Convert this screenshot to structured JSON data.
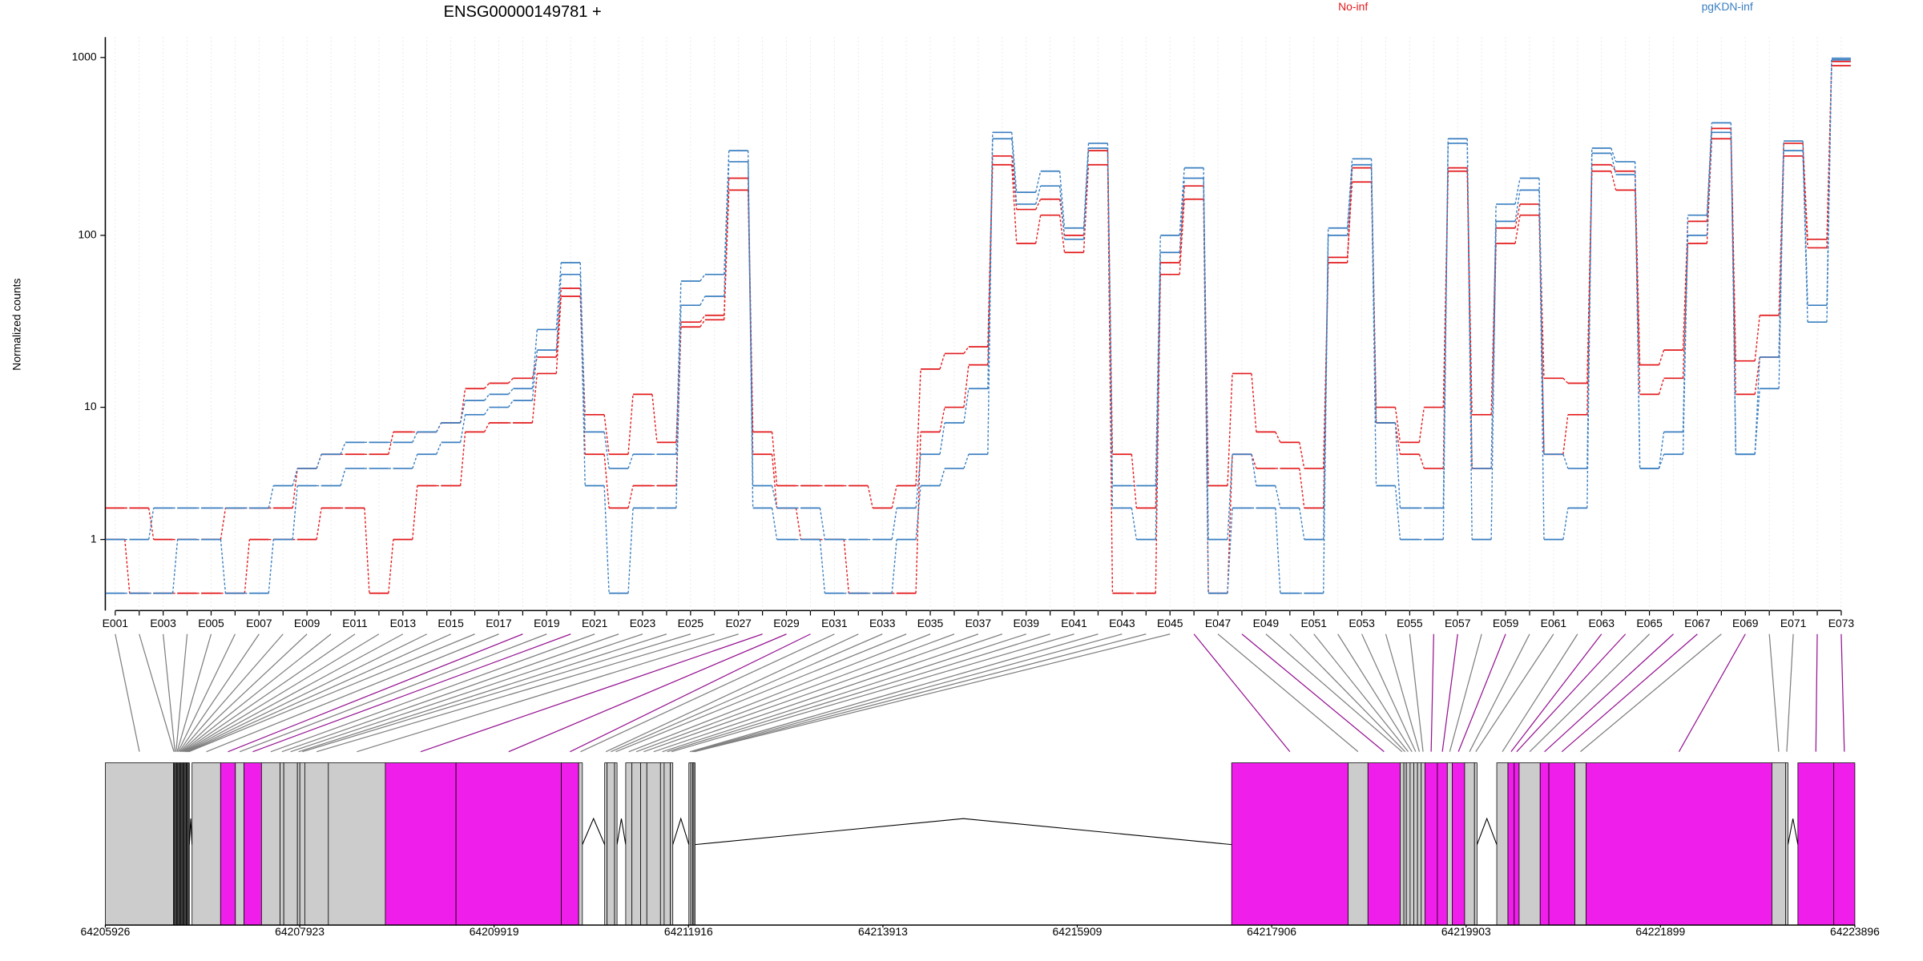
{
  "chart_data": [
    {
      "type": "step",
      "title": "ENSG00000149781 +",
      "ylabel": "Normalized counts",
      "yscale": "log1p",
      "ylim": [
        -0.2,
        1300
      ],
      "yticks": [
        1,
        10,
        100,
        1000
      ],
      "grid": true,
      "legend": "top",
      "categories": [
        "E001",
        null,
        "E003",
        null,
        "E005",
        null,
        "E007",
        null,
        "E009",
        null,
        "E011",
        null,
        "E013",
        null,
        "E015",
        null,
        "E017",
        null,
        "E019",
        null,
        "E021",
        null,
        "E023",
        null,
        "E025",
        null,
        "E027",
        null,
        "E029",
        null,
        "E031",
        null,
        "E033",
        null,
        "E035",
        null,
        "E037",
        null,
        "E039",
        null,
        "E041",
        null,
        "E043",
        null,
        "E045",
        null,
        "E047",
        null,
        "E049",
        null,
        "E051",
        null,
        "E053",
        null,
        "E055",
        null,
        "E057",
        null,
        "E059",
        null,
        "E061",
        null,
        "E063",
        null,
        "E065",
        null,
        "E067",
        null,
        "E069",
        null,
        "E071",
        null,
        "E073"
      ],
      "series": [
        {
          "name": "No-inf",
          "color": "#e31a1c",
          "samples": [
            [
              2,
              2,
              1,
              1,
              1,
              2,
              2,
              2,
              4,
              5,
              5,
              5,
              7,
              7,
              8,
              13,
              14,
              15,
              20,
              50,
              9,
              5,
              12,
              6,
              32,
              35,
              210,
              7,
              3,
              3,
              3,
              3,
              2,
              3,
              17,
              21,
              23,
              280,
              140,
              160,
              100,
              300,
              5,
              2,
              70,
              190,
              3,
              16,
              7,
              6,
              4,
              70,
              240,
              10,
              6,
              10,
              230,
              9,
              110,
              150,
              15,
              14,
              250,
              230,
              18,
              22,
              120,
              400,
              19,
              35,
              330,
              95,
              950
            ],
            [
              1,
              0,
              0,
              0,
              0,
              0,
              1,
              1,
              1,
              2,
              2,
              0,
              1,
              3,
              3,
              7,
              8,
              8,
              16,
              45,
              5,
              2,
              3,
              3,
              30,
              33,
              180,
              5,
              2,
              1,
              1,
              0,
              0,
              0,
              7,
              10,
              18,
              250,
              90,
              130,
              80,
              250,
              0,
              0,
              60,
              160,
              0,
              5,
              4,
              4,
              2,
              75,
              200,
              8,
              5,
              4,
              240,
              4,
              90,
              130,
              5,
              9,
              230,
              180,
              12,
              15,
              90,
              350,
              12,
              20,
              280,
              85,
              900
            ]
          ]
        },
        {
          "name": "pgKDN-inf",
          "color": "#3a7fc1",
          "samples": [
            [
              1,
              1,
              2,
              2,
              2,
              2,
              2,
              3,
              4,
              5,
              6,
              6,
              6,
              7,
              8,
              11,
              12,
              13,
              29,
              70,
              7,
              4,
              5,
              5,
              55,
              60,
              300,
              3,
              2,
              2,
              1,
              1,
              1,
              2,
              5,
              8,
              13,
              380,
              175,
              230,
              110,
              330,
              3,
              3,
              100,
              240,
              1,
              5,
              3,
              2,
              1,
              110,
              270,
              8,
              2,
              2,
              350,
              4,
              150,
              210,
              5,
              4,
              310,
              260,
              4,
              7,
              130,
              430,
              5,
              20,
              340,
              40,
              990
            ],
            [
              0,
              0,
              0,
              1,
              1,
              0,
              0,
              1,
              3,
              3,
              4,
              4,
              4,
              5,
              6,
              9,
              10,
              11,
              22,
              60,
              3,
              0,
              2,
              2,
              40,
              45,
              260,
              2,
              1,
              1,
              0,
              0,
              0,
              1,
              3,
              4,
              5,
              350,
              150,
              190,
              95,
              310,
              2,
              1,
              80,
              210,
              0,
              2,
              2,
              0,
              0,
              100,
              250,
              3,
              1,
              1,
              330,
              1,
              120,
              180,
              1,
              2,
              290,
              220,
              4,
              5,
              100,
              380,
              5,
              13,
              300,
              32,
              970
            ]
          ]
        }
      ]
    },
    {
      "type": "gene-model",
      "xlim": [
        64205926,
        64223896
      ],
      "xticks": [
        64205926,
        64207923,
        64209919,
        64211916,
        64213913,
        64215909,
        64217906,
        64219903,
        64221899,
        64223896
      ],
      "exons": [
        {
          "start": 64205926,
          "end": 64206626,
          "color": "#cccccc"
        },
        {
          "start": 64206626,
          "end": 64206635,
          "color": "#cccccc"
        },
        {
          "start": 64206637,
          "end": 64206646,
          "color": "#cccccc"
        },
        {
          "start": 64206648,
          "end": 64206657,
          "color": "#cccccc"
        },
        {
          "start": 64206659,
          "end": 64206668,
          "color": "#cccccc"
        },
        {
          "start": 64206670,
          "end": 64206679,
          "color": "#cccccc"
        },
        {
          "start": 64206681,
          "end": 64206690,
          "color": "#cccccc"
        },
        {
          "start": 64206692,
          "end": 64206701,
          "color": "#cccccc"
        },
        {
          "start": 64206703,
          "end": 64206712,
          "color": "#cccccc"
        },
        {
          "start": 64206714,
          "end": 64206723,
          "color": "#cccccc"
        },
        {
          "start": 64206725,
          "end": 64206734,
          "color": "#cccccc"
        },
        {
          "start": 64206736,
          "end": 64206745,
          "color": "#cccccc"
        },
        {
          "start": 64206747,
          "end": 64206756,
          "color": "#cccccc"
        },
        {
          "start": 64206758,
          "end": 64206767,
          "color": "#cccccc"
        },
        {
          "start": 64206769,
          "end": 64206778,
          "color": "#cccccc"
        },
        {
          "start": 64206780,
          "end": 64206789,
          "color": "#cccccc"
        },
        {
          "start": 64206817,
          "end": 64207110,
          "color": "#cccccc"
        },
        {
          "start": 64207110,
          "end": 64207262,
          "color": "#f01eea"
        },
        {
          "start": 64207262,
          "end": 64207351,
          "color": "#cccccc"
        },
        {
          "start": 64207351,
          "end": 64207530,
          "color": "#f01eea"
        },
        {
          "start": 64207530,
          "end": 64207721,
          "color": "#cccccc"
        },
        {
          "start": 64207721,
          "end": 64207759,
          "color": "#cccccc"
        },
        {
          "start": 64207759,
          "end": 64207899,
          "color": "#cccccc"
        },
        {
          "start": 64207899,
          "end": 64207924,
          "color": "#cccccc"
        },
        {
          "start": 64207924,
          "end": 64207975,
          "color": "#cccccc"
        },
        {
          "start": 64207975,
          "end": 64208217,
          "color": "#cccccc"
        },
        {
          "start": 64208217,
          "end": 64208802,
          "color": "#cccccc"
        },
        {
          "start": 64208802,
          "end": 64209528,
          "color": "#f01eea"
        },
        {
          "start": 64209528,
          "end": 64210610,
          "color": "#f01eea"
        },
        {
          "start": 64210610,
          "end": 64210788,
          "color": "#f01eea"
        },
        {
          "start": 64210788,
          "end": 64210826,
          "color": "#cccccc"
        },
        {
          "start": 64211055,
          "end": 64211080,
          "color": "#cccccc"
        },
        {
          "start": 64211080,
          "end": 64211157,
          "color": "#cccccc"
        },
        {
          "start": 64211157,
          "end": 64211182,
          "color": "#cccccc"
        },
        {
          "start": 64211271,
          "end": 64211335,
          "color": "#cccccc"
        },
        {
          "start": 64211335,
          "end": 64211424,
          "color": "#cccccc"
        },
        {
          "start": 64211424,
          "end": 64211488,
          "color": "#cccccc"
        },
        {
          "start": 64211488,
          "end": 64211628,
          "color": "#cccccc"
        },
        {
          "start": 64211628,
          "end": 64211666,
          "color": "#cccccc"
        },
        {
          "start": 64211666,
          "end": 64211729,
          "color": "#cccccc"
        },
        {
          "start": 64211729,
          "end": 64211755,
          "color": "#cccccc"
        },
        {
          "start": 64211920,
          "end": 64211940,
          "color": "#cccccc"
        },
        {
          "start": 64211940,
          "end": 64211959,
          "color": "#cccccc"
        },
        {
          "start": 64211959,
          "end": 64211971,
          "color": "#cccccc"
        },
        {
          "start": 64211971,
          "end": 64211984,
          "color": "#cccccc"
        },
        {
          "start": 64217495,
          "end": 64218691,
          "color": "#f01eea"
        },
        {
          "start": 64218691,
          "end": 64218895,
          "color": "#cccccc"
        },
        {
          "start": 64218895,
          "end": 64219226,
          "color": "#f01eea"
        },
        {
          "start": 64219226,
          "end": 64219264,
          "color": "#cccccc"
        },
        {
          "start": 64219264,
          "end": 64219289,
          "color": "#cccccc"
        },
        {
          "start": 64219289,
          "end": 64219328,
          "color": "#cccccc"
        },
        {
          "start": 64219328,
          "end": 64219366,
          "color": "#cccccc"
        },
        {
          "start": 64219366,
          "end": 64219404,
          "color": "#cccccc"
        },
        {
          "start": 64219404,
          "end": 64219442,
          "color": "#cccccc"
        },
        {
          "start": 64219442,
          "end": 64219480,
          "color": "#cccccc"
        },
        {
          "start": 64219480,
          "end": 64219608,
          "color": "#f01eea"
        },
        {
          "start": 64219608,
          "end": 64219710,
          "color": "#f01eea"
        },
        {
          "start": 64219710,
          "end": 64219760,
          "color": "#cccccc"
        },
        {
          "start": 64219760,
          "end": 64219888,
          "color": "#f01eea"
        },
        {
          "start": 64219888,
          "end": 64219989,
          "color": "#cccccc"
        },
        {
          "start": 64219989,
          "end": 64220015,
          "color": "#cccccc"
        },
        {
          "start": 64220218,
          "end": 64220333,
          "color": "#cccccc"
        },
        {
          "start": 64220333,
          "end": 64220397,
          "color": "#f01eea"
        },
        {
          "start": 64220397,
          "end": 64220448,
          "color": "#f01eea"
        },
        {
          "start": 64220448,
          "end": 64220664,
          "color": "#cccccc"
        },
        {
          "start": 64220664,
          "end": 64220753,
          "color": "#f01eea"
        },
        {
          "start": 64220753,
          "end": 64221020,
          "color": "#f01eea"
        },
        {
          "start": 64221020,
          "end": 64221135,
          "color": "#cccccc"
        },
        {
          "start": 64221135,
          "end": 64223044,
          "color": "#f01eea"
        },
        {
          "start": 64223044,
          "end": 64223184,
          "color": "#cccccc"
        },
        {
          "start": 64223184,
          "end": 64223209,
          "color": "#cccccc"
        },
        {
          "start": 64223311,
          "end": 64223680,
          "color": "#f01eea"
        },
        {
          "start": 64223680,
          "end": 64223896,
          "color": "#f01eea"
        }
      ]
    }
  ]
}
